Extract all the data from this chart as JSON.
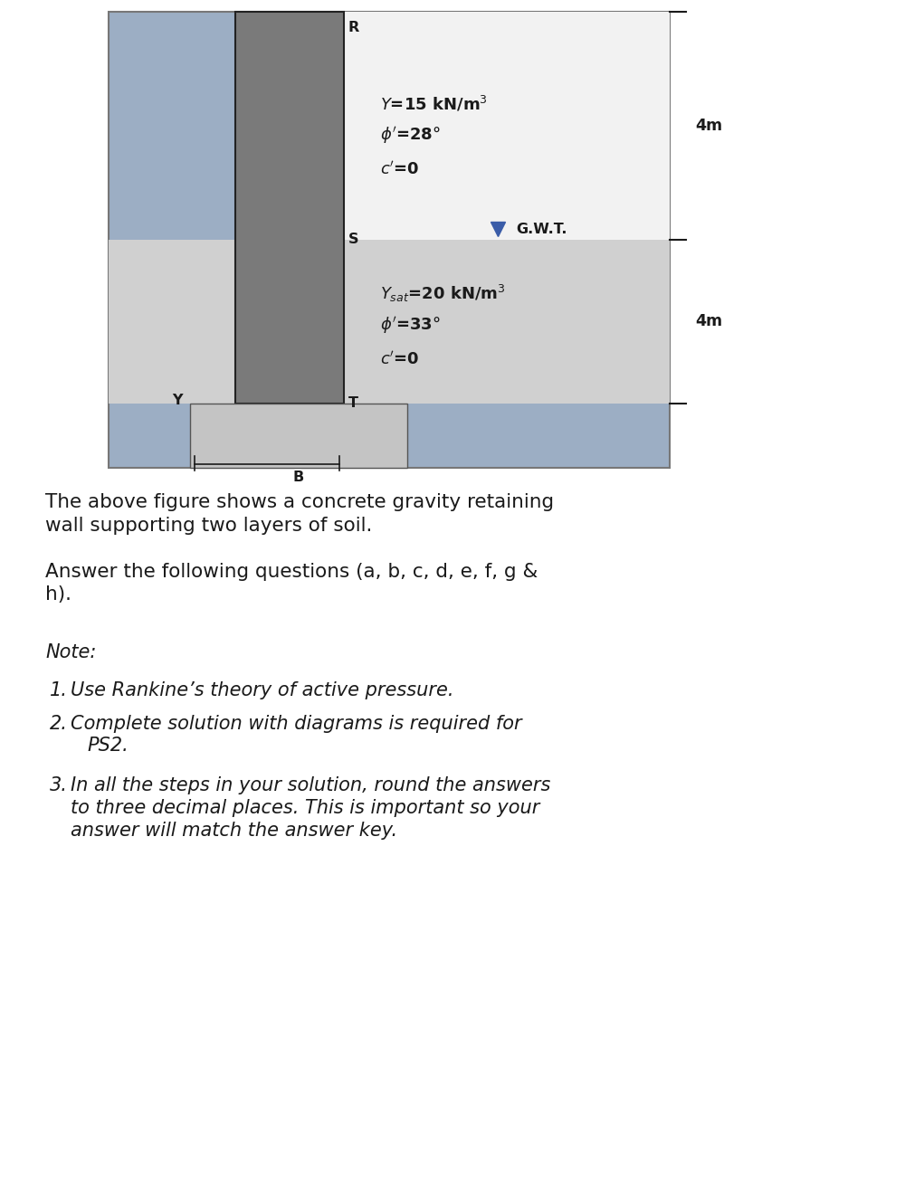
{
  "fig_width": 10.0,
  "fig_height": 13.24,
  "dpi": 100,
  "bg_color": "#ffffff",
  "diagram_bg": "#9caec4",
  "soil_top_color": "#f4f4f4",
  "soil_bottom_color": "#d4d4d4",
  "wall_color": "#7a7a7a",
  "wall_border_color": "#222222",
  "base_color": "#c4c4c4",
  "base_border": "#555555",
  "gwt_label": "G.W.T.",
  "label_R": "R",
  "label_S": "S",
  "label_T": "T",
  "label_Y": "Y",
  "label_B": "B",
  "dim1_label": "4m",
  "dim2_label": "4m",
  "text_color": "#1a1a1a",
  "dim_color": "#1a1a1a",
  "gwt_triangle_color": "#3a5ca8",
  "intro_text1": "The above figure shows a concrete gravity retaining",
  "intro_text2": "wall supporting two layers of soil.",
  "intro_text3": "Answer the following questions (a, b, c, d, e, f, g &",
  "intro_text4": "h).",
  "note_label": "Note:",
  "note1": "Use Rankine’s theory of active pressure.",
  "note2a": "Complete solution with diagrams is required for",
  "note2b": "PS2.",
  "note3a": "In all the steps in your solution, round the answers",
  "note3b": "to three decimal places. This is important so your",
  "note3c": "answer will match the answer key.",
  "font_size_body": 15.5,
  "font_size_note": 15.0,
  "font_size_diagram": 13.0,
  "font_size_label": 11.5
}
